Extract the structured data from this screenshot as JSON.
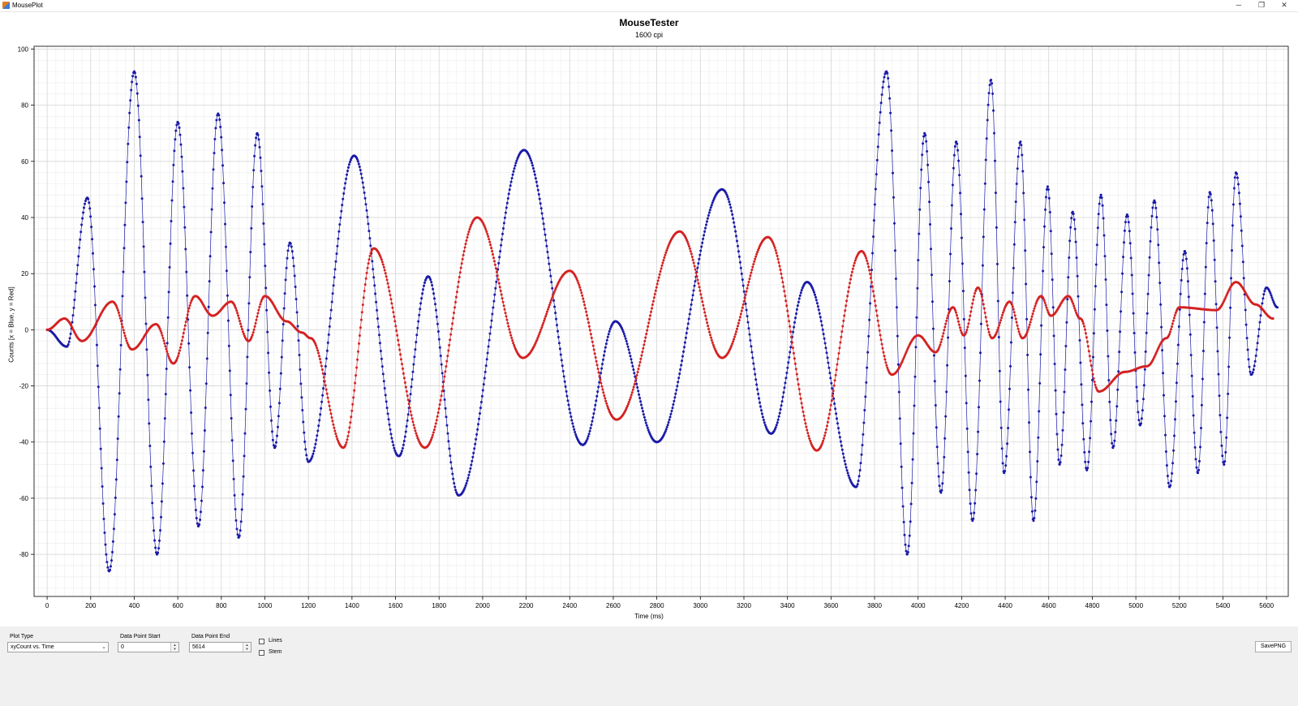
{
  "window": {
    "title": "MousePlot",
    "minimize_glyph": "─",
    "restore_glyph": "❐",
    "close_glyph": "✕"
  },
  "chart_data": {
    "type": "scatter",
    "title": "MouseTester",
    "subtitle": "1600 cpi",
    "xlabel": "Time (ms)",
    "ylabel": "Counts [x = Blue, y = Red]",
    "xlim": [
      -60,
      5700
    ],
    "ylim": [
      -95,
      101
    ],
    "xticks": [
      0,
      200,
      400,
      600,
      800,
      1000,
      1200,
      1400,
      1600,
      1800,
      2000,
      2200,
      2400,
      2600,
      2800,
      3000,
      3200,
      3400,
      3600,
      3800,
      4000,
      4200,
      4400,
      4600,
      4800,
      5000,
      5200,
      5400,
      5600
    ],
    "yticks": [
      100,
      80,
      60,
      40,
      20,
      0,
      -20,
      -40,
      -60,
      -80
    ],
    "grid": true,
    "legend": "none",
    "series": [
      {
        "name": "x",
        "color": "#1a1aa8",
        "extrema": [
          [
            0,
            0
          ],
          [
            90,
            -6
          ],
          [
            185,
            47
          ],
          [
            285,
            -86
          ],
          [
            400,
            92
          ],
          [
            505,
            -80
          ],
          [
            600,
            74
          ],
          [
            695,
            -70
          ],
          [
            785,
            77
          ],
          [
            880,
            -74
          ],
          [
            965,
            70
          ],
          [
            1045,
            -42
          ],
          [
            1115,
            31
          ],
          [
            1200,
            -47
          ],
          [
            1410,
            62
          ],
          [
            1615,
            -45
          ],
          [
            1750,
            19
          ],
          [
            1890,
            -59
          ],
          [
            2190,
            64
          ],
          [
            2460,
            -41
          ],
          [
            2610,
            3
          ],
          [
            2800,
            -40
          ],
          [
            3100,
            50
          ],
          [
            3325,
            -37
          ],
          [
            3490,
            17
          ],
          [
            3715,
            -56
          ],
          [
            3855,
            92
          ],
          [
            3950,
            -80
          ],
          [
            4030,
            70
          ],
          [
            4105,
            -58
          ],
          [
            4175,
            67
          ],
          [
            4250,
            -68
          ],
          [
            4335,
            89
          ],
          [
            4395,
            -51
          ],
          [
            4470,
            67
          ],
          [
            4530,
            -68
          ],
          [
            4595,
            51
          ],
          [
            4650,
            -48
          ],
          [
            4710,
            42
          ],
          [
            4775,
            -50
          ],
          [
            4840,
            48
          ],
          [
            4895,
            -42
          ],
          [
            4960,
            41
          ],
          [
            5020,
            -34
          ],
          [
            5085,
            46
          ],
          [
            5155,
            -56
          ],
          [
            5225,
            28
          ],
          [
            5285,
            -51
          ],
          [
            5340,
            49
          ],
          [
            5405,
            -48
          ],
          [
            5460,
            56
          ],
          [
            5530,
            -16
          ],
          [
            5600,
            15
          ],
          [
            5650,
            8
          ]
        ]
      },
      {
        "name": "y",
        "color": "#d42222",
        "extrema": [
          [
            0,
            0
          ],
          [
            80,
            4
          ],
          [
            160,
            -4
          ],
          [
            300,
            10
          ],
          [
            390,
            -7
          ],
          [
            500,
            2
          ],
          [
            580,
            -12
          ],
          [
            680,
            12
          ],
          [
            760,
            5
          ],
          [
            845,
            10
          ],
          [
            925,
            -4
          ],
          [
            1000,
            12
          ],
          [
            1100,
            3
          ],
          [
            1170,
            -1
          ],
          [
            1210,
            -3
          ],
          [
            1360,
            -42
          ],
          [
            1500,
            29
          ],
          [
            1735,
            -42
          ],
          [
            1975,
            40
          ],
          [
            2185,
            -10
          ],
          [
            2400,
            21
          ],
          [
            2615,
            -32
          ],
          [
            2905,
            35
          ],
          [
            3100,
            -10
          ],
          [
            3310,
            33
          ],
          [
            3535,
            -43
          ],
          [
            3740,
            28
          ],
          [
            3880,
            -16
          ],
          [
            4000,
            -2
          ],
          [
            4080,
            -8
          ],
          [
            4160,
            8
          ],
          [
            4210,
            -2
          ],
          [
            4275,
            15
          ],
          [
            4340,
            -3
          ],
          [
            4420,
            10
          ],
          [
            4480,
            -3
          ],
          [
            4565,
            12
          ],
          [
            4610,
            5
          ],
          [
            4690,
            12
          ],
          [
            4745,
            4
          ],
          [
            4830,
            -22
          ],
          [
            4950,
            -15
          ],
          [
            5050,
            -13
          ],
          [
            5140,
            -3
          ],
          [
            5200,
            8
          ],
          [
            5370,
            7
          ],
          [
            5460,
            17
          ],
          [
            5550,
            9
          ],
          [
            5630,
            4
          ]
        ]
      }
    ]
  },
  "controls": {
    "plot_type_label": "Plot Type",
    "plot_type_value": "xyCount vs. Time",
    "start_label": "Data Point Start",
    "start_value": "0",
    "end_label": "Data Point End",
    "end_value": "5614",
    "lines_label": "Lines",
    "stem_label": "Stem",
    "save_label": "SavePNG"
  }
}
